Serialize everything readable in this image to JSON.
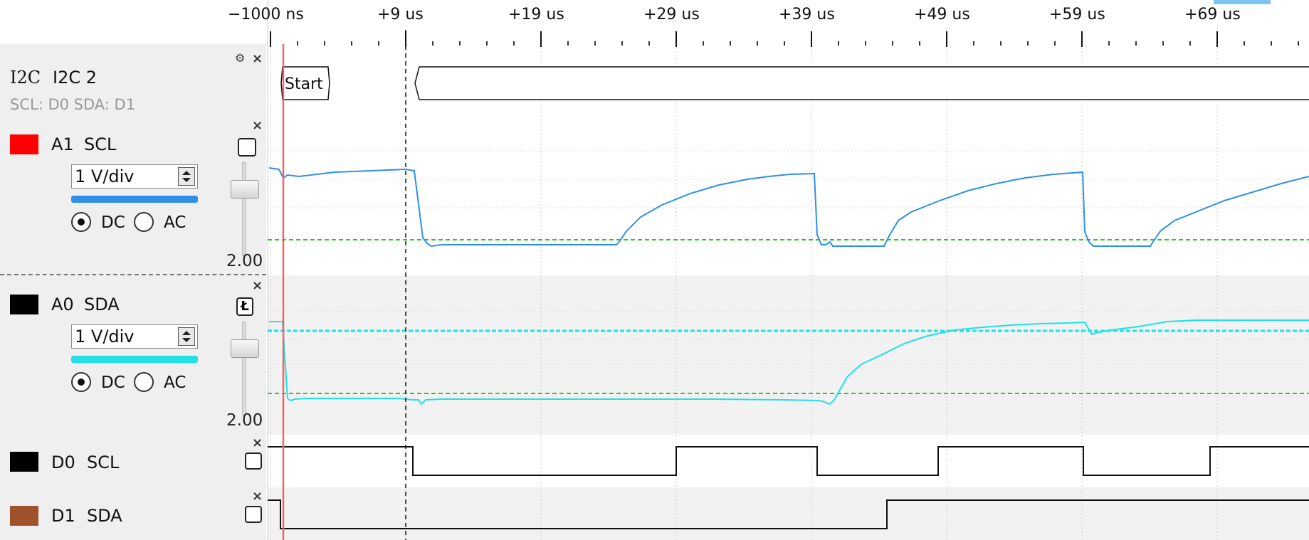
{
  "time_axis": {
    "ticks": [
      "−1000 ns",
      "+9 us",
      "+19 us",
      "+29 us",
      "+39 us",
      "+49 us",
      "+59 us",
      "+69 us"
    ]
  },
  "decoder": {
    "protocol": "I2C",
    "name": "I2C 2",
    "config": "SCL: D0 SDA: D1",
    "packet_label": "Start"
  },
  "analog_channels": [
    {
      "id": "A1",
      "signal": "SCL",
      "swatch_color": "#ff0000",
      "volts_per_div": "1 V/div",
      "trace_color": "#2f8fe8",
      "coupling_dc": "DC",
      "coupling_ac": "AC",
      "selected_coupling": "DC",
      "offset": "2.00",
      "threshold_color": "#22cc22"
    },
    {
      "id": "A0",
      "signal": "SDA",
      "swatch_color": "#000000",
      "volts_per_div": "1 V/div",
      "trace_color": "#20e0e8",
      "coupling_dc": "DC",
      "coupling_ac": "AC",
      "selected_coupling": "DC",
      "offset": "2.00",
      "threshold_color": "#22cc22",
      "trigger_color": "#20e0e8"
    }
  ],
  "digital_channels": [
    {
      "id": "D0",
      "signal": "SCL",
      "swatch_color": "#000000"
    },
    {
      "id": "D1",
      "signal": "SDA",
      "swatch_color": "#a0522d"
    }
  ],
  "icons": {
    "close": "×",
    "settings": "⚙",
    "trigger": "Ł"
  }
}
